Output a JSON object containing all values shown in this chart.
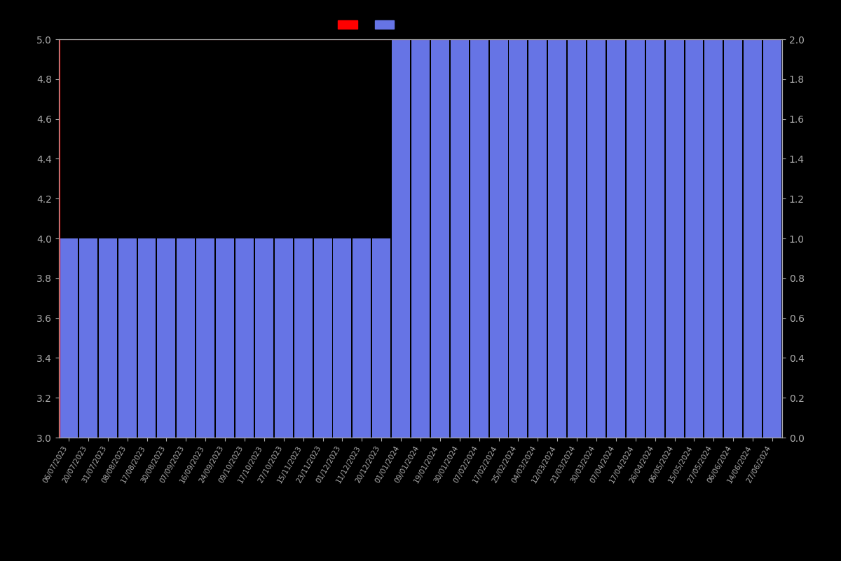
{
  "dates": [
    "06/07/2023",
    "20/07/2023",
    "31/07/2023",
    "08/08/2023",
    "17/08/2023",
    "30/08/2023",
    "07/09/2023",
    "16/09/2023",
    "24/09/2023",
    "09/10/2023",
    "17/10/2023",
    "27/10/2023",
    "15/11/2023",
    "23/11/2023",
    "01/12/2023",
    "11/12/2023",
    "20/12/2023",
    "01/01/2024",
    "09/01/2024",
    "19/01/2024",
    "30/01/2024",
    "07/02/2024",
    "17/02/2024",
    "25/02/2024",
    "04/03/2024",
    "12/03/2024",
    "21/03/2024",
    "30/03/2024",
    "07/04/2024",
    "17/04/2024",
    "26/04/2024",
    "06/05/2024",
    "15/05/2024",
    "27/05/2024",
    "06/06/2024",
    "14/06/2024",
    "27/06/2024"
  ],
  "bar_values": [
    4,
    4,
    4,
    4,
    4,
    4,
    4,
    4,
    4,
    4,
    4,
    4,
    4,
    4,
    4,
    4,
    4,
    5,
    5,
    5,
    5,
    5,
    5,
    5,
    5,
    5,
    5,
    5,
    5,
    5,
    5,
    5,
    5,
    5,
    5,
    5,
    5
  ],
  "bar_color": "#6674e5",
  "line_color": "#ff0000",
  "background_color": "#000000",
  "text_color": "#aaaaaa",
  "ylim_left": [
    3.0,
    5.0
  ],
  "ylim_right": [
    0,
    2.0
  ],
  "yticks_left": [
    3.0,
    3.2,
    3.4,
    3.6,
    3.8,
    4.0,
    4.2,
    4.4,
    4.6,
    4.8,
    5.0
  ],
  "yticks_right": [
    0,
    0.2,
    0.4,
    0.6,
    0.8,
    1.0,
    1.2,
    1.4,
    1.6,
    1.8,
    2.0
  ],
  "figsize": [
    12,
    8
  ],
  "dpi": 100
}
